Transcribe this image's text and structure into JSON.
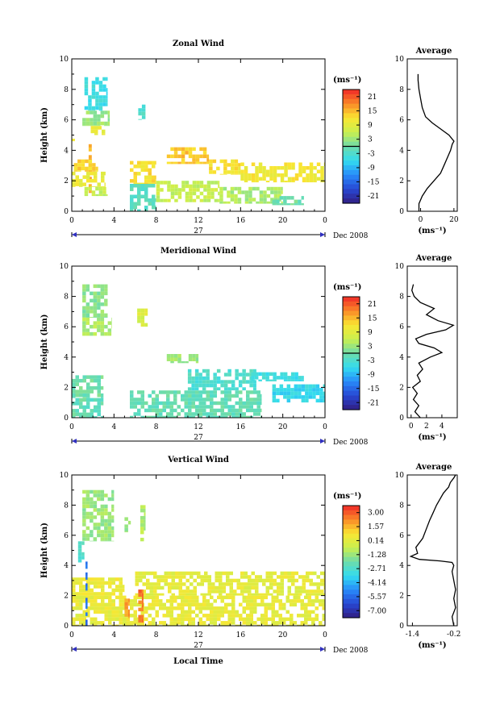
{
  "chart_data": [
    {
      "type": "heatmap",
      "title": "Zonal Wind",
      "ylabel": "Height (km)",
      "xlabel": "",
      "x_ticks": [
        "0",
        "4",
        "8",
        "12",
        "16",
        "20",
        "0"
      ],
      "y_ticks": [
        "0",
        "2",
        "4",
        "6",
        "8",
        "10"
      ],
      "xlim": [
        0,
        24
      ],
      "ylim": [
        0,
        10
      ],
      "day_label": "27",
      "month_label": "Dec 2008",
      "colorbar": {
        "unit_label": "(ms⁻¹)",
        "ticks": [
          "21",
          "15",
          "9",
          "3",
          "-3",
          "-9",
          "-15",
          "-21"
        ],
        "range": [
          -24,
          24
        ],
        "zero_line_value": 0
      },
      "regions": [
        {
          "x": [
            1.2,
            3.4
          ],
          "y": [
            6.6,
            8.8
          ],
          "value": -5
        },
        {
          "x": [
            1.0,
            3.6
          ],
          "y": [
            5.6,
            6.6
          ],
          "value": 3
        },
        {
          "x": [
            1.8,
            3.2
          ],
          "y": [
            5.0,
            5.6
          ],
          "value": 10
        },
        {
          "x": [
            6.3,
            7.0
          ],
          "y": [
            6.0,
            7.0
          ],
          "value": -3
        },
        {
          "x": [
            0.0,
            0.3
          ],
          "y": [
            4.6,
            5.0
          ],
          "value": 12
        },
        {
          "x": [
            1.6,
            1.9
          ],
          "y": [
            1.2,
            4.4
          ],
          "value": 16
        },
        {
          "x": [
            0.2,
            2.5
          ],
          "y": [
            2.6,
            3.4
          ],
          "value": 13
        },
        {
          "x": [
            0.0,
            3.2
          ],
          "y": [
            1.6,
            2.6
          ],
          "value": 10
        },
        {
          "x": [
            1.2,
            3.4
          ],
          "y": [
            1.0,
            1.6
          ],
          "value": 6
        },
        {
          "x": [
            5.5,
            8.0
          ],
          "y": [
            1.8,
            3.3
          ],
          "value": 12
        },
        {
          "x": [
            5.5,
            8.0
          ],
          "y": [
            0.0,
            1.8
          ],
          "value": -2
        },
        {
          "x": [
            8.0,
            14.0
          ],
          "y": [
            0.6,
            2.0
          ],
          "value": 6
        },
        {
          "x": [
            14.0,
            20.0
          ],
          "y": [
            0.5,
            1.6
          ],
          "value": 4
        },
        {
          "x": [
            9.0,
            13.0
          ],
          "y": [
            3.1,
            4.2
          ],
          "value": 14
        },
        {
          "x": [
            13.0,
            16.0
          ],
          "y": [
            2.4,
            3.4
          ],
          "value": 12
        },
        {
          "x": [
            16.0,
            24.0
          ],
          "y": [
            1.9,
            3.2
          ],
          "value": 11
        },
        {
          "x": [
            19.0,
            22.0
          ],
          "y": [
            0.4,
            1.0
          ],
          "value": 0
        }
      ],
      "profile": {
        "title": "Average",
        "x_ticks": [
          {
            "value": 0,
            "label": "0"
          },
          {
            "value": 20,
            "label": "20"
          }
        ],
        "xlim": [
          -8,
          22
        ],
        "ylim": [
          0,
          10
        ],
        "x_label": "(ms⁻¹)",
        "y_ticks": [
          "0",
          "2",
          "4",
          "6",
          "8",
          "10"
        ],
        "x": [
          -1,
          -1,
          1,
          4,
          8,
          12,
          14,
          16,
          18,
          19,
          20,
          17,
          12,
          7,
          3,
          1,
          0,
          -1,
          -1.5,
          -1.5
        ],
        "y": [
          0,
          0.5,
          1.0,
          1.5,
          2.0,
          2.5,
          3.0,
          3.5,
          4.0,
          4.4,
          4.6,
          5.0,
          5.4,
          5.8,
          6.2,
          6.8,
          7.4,
          8.0,
          8.6,
          9.0
        ]
      }
    },
    {
      "type": "heatmap",
      "title": "Meridional Wind",
      "ylabel": "Height (km)",
      "xlabel": "",
      "x_ticks": [
        "0",
        "4",
        "8",
        "12",
        "16",
        "20",
        "0"
      ],
      "y_ticks": [
        "0",
        "2",
        "4",
        "6",
        "8",
        "10"
      ],
      "xlim": [
        0,
        24
      ],
      "ylim": [
        0,
        10
      ],
      "day_label": "27",
      "month_label": "Dec 2008",
      "colorbar": {
        "unit_label": "(ms⁻¹)",
        "ticks": [
          "21",
          "15",
          "9",
          "3",
          "-3",
          "-9",
          "-15",
          "-21"
        ],
        "range": [
          -24,
          24
        ],
        "zero_line_value": 0
      },
      "regions": [
        {
          "x": [
            1.0,
            3.4
          ],
          "y": [
            6.6,
            8.8
          ],
          "value": 2
        },
        {
          "x": [
            1.0,
            3.8
          ],
          "y": [
            5.4,
            6.6
          ],
          "value": 4
        },
        {
          "x": [
            6.2,
            7.2
          ],
          "y": [
            6.0,
            7.2
          ],
          "value": 8
        },
        {
          "x": [
            0.0,
            3.0
          ],
          "y": [
            1.3,
            2.8
          ],
          "value": 0
        },
        {
          "x": [
            0.0,
            3.0
          ],
          "y": [
            0.0,
            1.3
          ],
          "value": -1
        },
        {
          "x": [
            5.5,
            18.0
          ],
          "y": [
            0.0,
            1.8
          ],
          "value": -1
        },
        {
          "x": [
            11.0,
            17.5
          ],
          "y": [
            1.8,
            3.2
          ],
          "value": -3
        },
        {
          "x": [
            17.0,
            22.0
          ],
          "y": [
            2.4,
            3.0
          ],
          "value": -5
        },
        {
          "x": [
            19.0,
            24.0
          ],
          "y": [
            1.0,
            2.2
          ],
          "value": -6
        },
        {
          "x": [
            9.0,
            12.0
          ],
          "y": [
            3.6,
            4.2
          ],
          "value": 3
        }
      ],
      "profile": {
        "title": "Average",
        "x_ticks": [
          {
            "value": 0,
            "label": "0"
          },
          {
            "value": 2,
            "label": "2"
          },
          {
            "value": 4,
            "label": "4"
          }
        ],
        "xlim": [
          -0.5,
          6
        ],
        "ylim": [
          0,
          10
        ],
        "x_label": "(ms⁻¹)",
        "y_ticks": [
          "0",
          "2",
          "4",
          "6",
          "8",
          "10"
        ],
        "x": [
          1.2,
          0.5,
          1.0,
          0.3,
          0.8,
          0.2,
          1.2,
          0.8,
          1.5,
          1.0,
          2.5,
          4.0,
          3.0,
          1.0,
          0.6,
          2.0,
          4.5,
          5.5,
          3.5,
          2.0,
          3.0,
          1.2,
          0.4,
          0.1,
          0.3
        ],
        "y": [
          0,
          0.4,
          0.8,
          1.2,
          1.6,
          2.0,
          2.4,
          2.8,
          3.2,
          3.6,
          4.0,
          4.3,
          4.6,
          4.9,
          5.2,
          5.5,
          5.8,
          6.1,
          6.4,
          6.8,
          7.2,
          7.6,
          8.0,
          8.4,
          8.8
        ]
      }
    },
    {
      "type": "heatmap",
      "title": "Vertical Wind",
      "ylabel": "Height (km)",
      "xlabel": "Local Time",
      "x_ticks": [
        "0",
        "4",
        "8",
        "12",
        "16",
        "20",
        "0"
      ],
      "y_ticks": [
        "0",
        "2",
        "4",
        "6",
        "8",
        "10"
      ],
      "xlim": [
        0,
        24
      ],
      "ylim": [
        0,
        10
      ],
      "day_label": "27",
      "month_label": "Dec 2008",
      "colorbar": {
        "unit_label": "(ms⁻¹)",
        "ticks": [
          "3.00",
          "1.57",
          "0.14",
          "-1.28",
          "-2.71",
          "-4.14",
          "-5.57",
          "-7.00"
        ],
        "range": [
          -7.7,
          3.7
        ],
        "zero_line_value": null
      },
      "regions": [
        {
          "x": [
            1.0,
            4.0
          ],
          "y": [
            5.6,
            9.0
          ],
          "value": -1.3
        },
        {
          "x": [
            5.0,
            5.6
          ],
          "y": [
            6.2,
            7.2
          ],
          "value": -1.3
        },
        {
          "x": [
            0.6,
            1.2
          ],
          "y": [
            4.2,
            5.6
          ],
          "value": -2.5
        },
        {
          "x": [
            6.5,
            7.0
          ],
          "y": [
            5.6,
            8.0
          ],
          "value": -1.0
        },
        {
          "x": [
            0.0,
            24.0
          ],
          "y": [
            0.0,
            2.0
          ],
          "value": 0.3
        },
        {
          "x": [
            0.0,
            5.0
          ],
          "y": [
            2.0,
            3.2
          ],
          "value": 0.5
        },
        {
          "x": [
            6.0,
            24.0
          ],
          "y": [
            2.0,
            3.6
          ],
          "value": 0.2
        },
        {
          "x": [
            1.3,
            1.5
          ],
          "y": [
            0.0,
            4.5
          ],
          "value": -5.5
        },
        {
          "x": [
            5.0,
            5.5
          ],
          "y": [
            0.5,
            1.8
          ],
          "value": 2.0
        },
        {
          "x": [
            6.3,
            6.8
          ],
          "y": [
            0.2,
            2.4
          ],
          "value": 2.6
        }
      ],
      "profile": {
        "title": "Average",
        "x_ticks": [
          {
            "value": -1.4,
            "label": "-1.4"
          },
          {
            "value": -0.2,
            "label": "-0.2"
          }
        ],
        "xlim": [
          -1.55,
          -0.1
        ],
        "ylim": [
          0,
          10
        ],
        "x_label": "(ms⁻¹)",
        "y_ticks": [
          "0",
          "2",
          "4",
          "6",
          "8",
          "10"
        ],
        "x": [
          -0.2,
          -0.25,
          -0.15,
          -0.2,
          -0.15,
          -0.2,
          -0.25,
          -0.2,
          -0.25,
          -0.6,
          -1.2,
          -1.45,
          -1.25,
          -1.3,
          -1.1,
          -1.0,
          -0.9,
          -0.8,
          -0.7,
          -0.6,
          -0.5,
          -0.35,
          -0.3,
          -0.2,
          -0.15
        ],
        "y": [
          0,
          0.6,
          1.2,
          1.8,
          2.4,
          3.0,
          3.6,
          4.0,
          4.2,
          4.3,
          4.4,
          4.6,
          4.8,
          5.2,
          5.8,
          6.4,
          7.0,
          7.5,
          8.0,
          8.4,
          8.8,
          9.2,
          9.5,
          9.8,
          10.0
        ]
      }
    }
  ]
}
